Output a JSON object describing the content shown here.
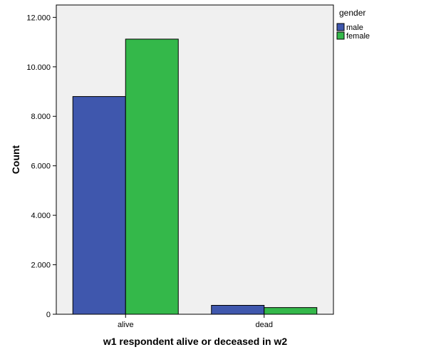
{
  "chart_data": {
    "type": "bar",
    "title": "",
    "xlabel": "w1 respondent alive or deceased in w2",
    "ylabel": "Count",
    "categories": [
      "alive",
      "dead"
    ],
    "series": [
      {
        "name": "male",
        "values": [
          8800,
          360
        ],
        "color": "#3f57ad"
      },
      {
        "name": "female",
        "values": [
          11120,
          270
        ],
        "color": "#34b84a"
      }
    ],
    "ylim": [
      0,
      12500
    ],
    "yticks": [
      0,
      2000,
      4000,
      6000,
      8000,
      10000,
      12000
    ],
    "ytick_labels": [
      "0",
      "2.000",
      "4.000",
      "6.000",
      "8.000",
      "10.000",
      "12.000"
    ],
    "legend_title": "gender",
    "legend_position": "top-right",
    "grid": false,
    "background": "#f0f0f0"
  }
}
